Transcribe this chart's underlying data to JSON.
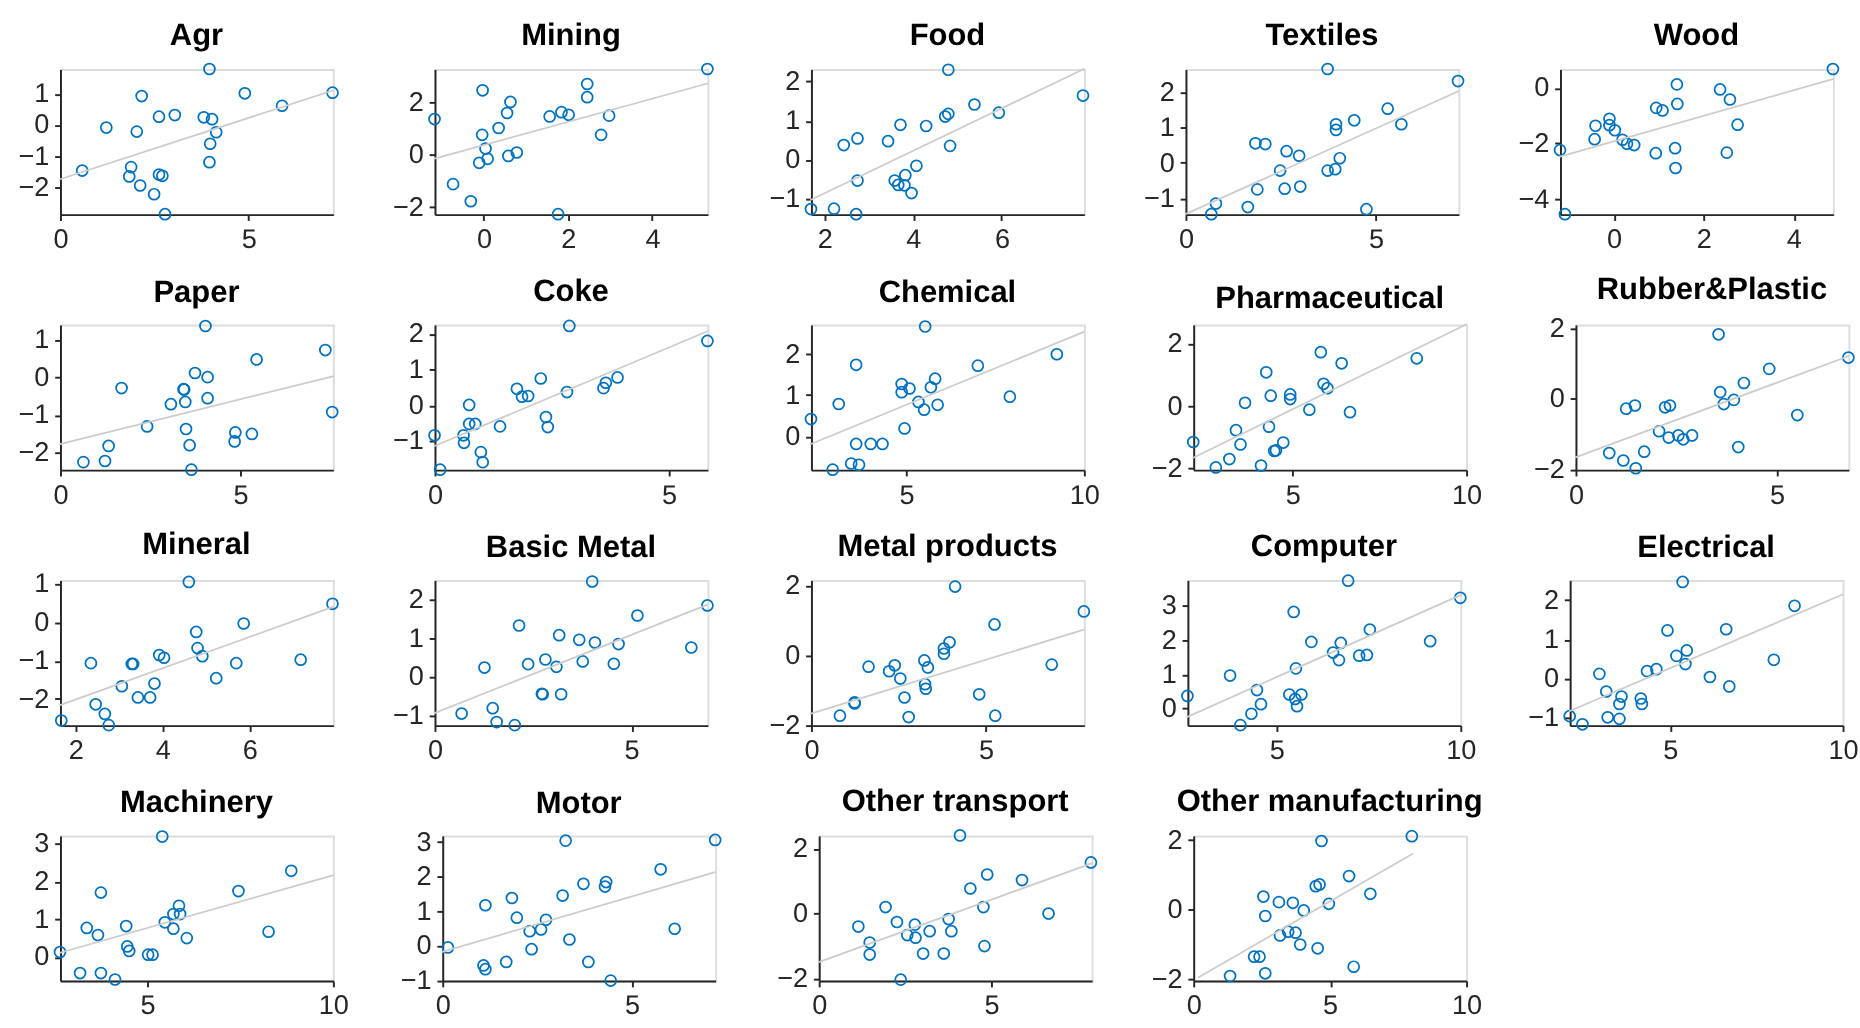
{
  "chart_data": [
    {
      "type": "scatter",
      "title": "Agr",
      "xlim": [
        0,
        7.25
      ],
      "ylim": [
        -2.87,
        1.79
      ],
      "xticks": [
        0,
        5
      ],
      "yticks": [
        -2,
        -1,
        0,
        1
      ],
      "series": [
        {
          "marker": "circle",
          "color": "#0072bd",
          "x": [
            0.59,
            1.23,
            2.04,
            2.17,
            1.89,
            1.84,
            2.13,
            2.5,
            2.63,
            2.63,
            2.72,
            2.79,
            3.05,
            3.82,
            3.97,
            4.04,
            3.99,
            3.97,
            4.15,
            4.91,
            5.9,
            7.24
          ],
          "values": [
            -1.47,
            -0.09,
            -0.22,
            0.92,
            -1.36,
            -1.66,
            -1.95,
            -2.23,
            0.26,
            -1.6,
            -1.64,
            -2.87,
            0.31,
            0.24,
            1.79,
            0.18,
            -0.61,
            -1.2,
            -0.24,
            1.01,
            0.61,
            1.03
          ]
        },
        {
          "type": "line",
          "color": "#cccccc",
          "x": [
            0,
            7.25
          ],
          "values": [
            -1.75,
            1.1
          ]
        }
      ]
    },
    {
      "type": "scatter",
      "title": "Mining",
      "xlim": [
        -1.16,
        5.31
      ],
      "ylim": [
        -2.26,
        3.25
      ],
      "xticks": [
        0,
        2,
        4
      ],
      "yticks": [
        -2,
        0,
        2
      ],
      "series": [
        {
          "marker": "circle",
          "color": "#0072bd",
          "x": [
            -1.16,
            -0.72,
            -0.3,
            -0.02,
            -0.03,
            -0.1,
            0.05,
            0.1,
            0.36,
            0.56,
            0.64,
            0.59,
            0.79,
            1.57,
            1.85,
            2.02,
            1.77,
            2.46,
            2.46,
            2.79,
            2.98,
            5.31
          ],
          "values": [
            1.35,
            -1.12,
            -1.77,
            2.44,
            0.75,
            -0.31,
            0.23,
            -0.16,
            1.01,
            1.58,
            2.0,
            -0.05,
            0.08,
            1.45,
            1.61,
            1.51,
            -2.26,
            2.68,
            2.18,
            0.75,
            1.48,
            3.25
          ]
        },
        {
          "type": "line",
          "color": "#cccccc",
          "x": [
            -1.16,
            5.31
          ],
          "values": [
            -0.15,
            2.7
          ]
        }
      ]
    },
    {
      "type": "scatter",
      "title": "Food",
      "xlim": [
        1.7,
        7.86
      ],
      "ylim": [
        -1.4,
        2.32
      ],
      "xticks": [
        2,
        4,
        6
      ],
      "yticks": [
        -1,
        0,
        1,
        2
      ],
      "series": [
        {
          "marker": "circle",
          "color": "#0072bd",
          "x": [
            1.7,
            2.22,
            2.72,
            2.44,
            2.75,
            2.75,
            3.44,
            3.72,
            3.59,
            3.67,
            3.83,
            3.81,
            3.97,
            4.08,
            4.3,
            4.73,
            4.8,
            4.8,
            4.84,
            5.39,
            5.94,
            7.84
          ],
          "values": [
            -1.27,
            -1.26,
            -1.4,
            0.37,
            0.54,
            -0.54,
            0.47,
            0.89,
            -0.54,
            -0.65,
            -0.4,
            -0.66,
            -0.86,
            -0.16,
            0.86,
            1.1,
            1.17,
            2.3,
            0.35,
            1.41,
            1.2,
            1.64
          ]
        },
        {
          "type": "line",
          "color": "#cccccc",
          "x": [
            1.7,
            7.86
          ],
          "values": [
            -1.03,
            2.32
          ]
        }
      ]
    },
    {
      "type": "scatter",
      "title": "Textiles",
      "xlim": [
        0,
        7.18
      ],
      "ylim": [
        -1.45,
        2.65
      ],
      "xticks": [
        0,
        5
      ],
      "yticks": [
        -1,
        0,
        1,
        2
      ],
      "series": [
        {
          "marker": "circle",
          "color": "#0072bd",
          "x": [
            0.68,
            0.8,
            1.64,
            1.84,
            2.1,
            1.89,
            2.49,
            2.61,
            2.66,
            2.99,
            3.02,
            3.74,
            3.74,
            3.94,
            3.96,
            3.96,
            4.06,
            4.44,
            4.76,
            5.32,
            5.68,
            7.17
          ],
          "values": [
            -1.45,
            -1.15,
            -1.25,
            0.55,
            0.53,
            -0.75,
            -0.22,
            -0.73,
            0.33,
            0.2,
            -0.67,
            2.65,
            -0.22,
            -0.18,
            1.09,
            0.93,
            0.13,
            1.2,
            -1.31,
            1.53,
            1.09,
            2.31
          ]
        },
        {
          "type": "line",
          "color": "#cccccc",
          "x": [
            0,
            7.18
          ],
          "values": [
            -1.45,
            2.02
          ]
        }
      ]
    },
    {
      "type": "scatter",
      "title": "Wood",
      "xlim": [
        -1.19,
        4.88
      ],
      "ylim": [
        -4.53,
        0.66
      ],
      "xticks": [
        0,
        2,
        4
      ],
      "yticks": [
        -4,
        -2,
        0
      ],
      "series": [
        {
          "marker": "circle",
          "color": "#0072bd",
          "x": [
            -1.19,
            -1.08,
            -0.4,
            -0.42,
            -0.09,
            -0.09,
            0.03,
            0.2,
            0.3,
            0.46,
            0.94,
            0.95,
            1.09,
            1.37,
            1.38,
            1.41,
            1.42,
            2.37,
            2.59,
            2.52,
            2.76,
            4.88
          ],
          "values": [
            -2.24,
            -4.53,
            -1.37,
            -1.85,
            -1.12,
            -1.35,
            -1.53,
            -1.87,
            -2.01,
            -2.06,
            -2.35,
            -0.73,
            -0.82,
            -2.17,
            -2.88,
            0.11,
            -0.59,
            -0.07,
            -0.43,
            -2.33,
            -1.33,
            0.66
          ]
        },
        {
          "type": "line",
          "color": "#cccccc",
          "x": [
            -1.19,
            4.88
          ],
          "values": [
            -2.47,
            0.3
          ]
        }
      ]
    },
    {
      "type": "scatter",
      "title": "Paper",
      "xlim": [
        0,
        7.58
      ],
      "ylim": [
        -2.46,
        1.4
      ],
      "xticks": [
        0,
        5
      ],
      "yticks": [
        -2,
        -1,
        0,
        1
      ],
      "series": [
        {
          "marker": "circle",
          "color": "#0072bd",
          "x": [
            0.65,
            1.25,
            1.35,
            1.71,
            2.42,
            3.08,
            3.43,
            3.45,
            3.48,
            3.5,
            3.6,
            3.65,
            3.75,
            4.04,
            4.1,
            4.1,
            4.87,
            4.85,
            5.33,
            5.46,
            7.37,
            7.56
          ],
          "values": [
            -2.26,
            -2.23,
            -1.83,
            -0.29,
            -1.31,
            -0.72,
            -0.32,
            -0.33,
            -0.66,
            -1.38,
            -1.81,
            -2.46,
            0.11,
            1.36,
            0.0,
            -0.56,
            -1.47,
            -1.71,
            -1.51,
            0.47,
            0.72,
            -0.93
          ]
        },
        {
          "type": "line",
          "color": "#cccccc",
          "x": [
            0,
            7.58
          ],
          "values": [
            -1.78,
            0.02
          ]
        }
      ]
    },
    {
      "type": "scatter",
      "title": "Coke",
      "xlim": [
        0,
        5.83
      ],
      "ylim": [
        -1.81,
        2.25
      ],
      "xticks": [
        0,
        5
      ],
      "yticks": [
        -1,
        0,
        1,
        2
      ],
      "series": [
        {
          "marker": "circle",
          "color": "#0072bd",
          "x": [
            0.0,
            0.12,
            0.62,
            0.63,
            0.74,
            0.74,
            0.87,
            0.99,
            1.03,
            1.4,
            1.76,
            1.87,
            2.0,
            2.27,
            2.38,
            2.42,
            2.83,
            2.88,
            3.61,
            3.66,
            3.91,
            5.83
          ],
          "values": [
            -0.85,
            -1.81,
            -0.85,
            -1.06,
            0.0,
            -0.53,
            -0.53,
            -1.32,
            -1.6,
            -0.6,
            0.45,
            0.23,
            0.25,
            0.74,
            -0.34,
            -0.62,
            0.36,
            2.21,
            0.47,
            0.62,
            0.77,
            1.79
          ]
        },
        {
          "type": "line",
          "color": "#cccccc",
          "x": [
            0,
            5.83
          ],
          "values": [
            -1.15,
            2.06
          ]
        }
      ]
    },
    {
      "type": "scatter",
      "title": "Chemical",
      "xlim": [
        2.33,
        10
      ],
      "ylim": [
        -0.83,
        2.73
      ],
      "xticks": [
        5,
        10
      ],
      "yticks": [
        0,
        1,
        2
      ],
      "series": [
        {
          "marker": "circle",
          "color": "#0072bd",
          "x": [
            2.33,
            2.94,
            3.11,
            3.6,
            3.6,
            3.46,
            3.68,
            4.01,
            4.34,
            4.88,
            4.88,
            5.1,
            4.96,
            5.35,
            5.51,
            5.54,
            5.7,
            5.82,
            5.89,
            7.02,
            7.92,
            9.24
          ],
          "values": [
            0.41,
            -0.83,
            0.78,
            1.74,
            -0.2,
            -0.68,
            -0.71,
            -0.2,
            -0.2,
            1.27,
            1.07,
            1.16,
            0.18,
            0.83,
            0.64,
            2.68,
            1.19,
            1.4,
            0.76,
            1.72,
            0.96,
            2.0
          ]
        },
        {
          "type": "line",
          "color": "#cccccc",
          "x": [
            2.33,
            10
          ],
          "values": [
            -0.2,
            2.55
          ]
        }
      ]
    },
    {
      "type": "scatter",
      "title": "Pharmaceutical",
      "xlim": [
        2.15,
        10
      ],
      "ylim": [
        -2.05,
        2.62
      ],
      "xticks": [
        5,
        10
      ],
      "yticks": [
        -2,
        0,
        2
      ],
      "series": [
        {
          "marker": "circle",
          "color": "#0072bd",
          "x": [
            2.15,
            2.8,
            3.19,
            3.38,
            3.51,
            3.64,
            4.1,
            4.25,
            4.33,
            4.38,
            4.48,
            4.53,
            4.74,
            4.94,
            4.94,
            5.49,
            5.82,
            5.9,
            6.01,
            6.42,
            6.66,
            8.58
          ],
          "values": [
            -1.16,
            -1.98,
            -1.71,
            -0.78,
            -1.24,
            0.1,
            -1.92,
            1.08,
            -0.67,
            0.33,
            -1.45,
            -1.43,
            -1.18,
            0.37,
            0.22,
            -0.12,
            1.73,
            0.71,
            0.57,
            1.37,
            -0.2,
            1.53
          ]
        },
        {
          "type": "line",
          "color": "#cccccc",
          "x": [
            2.15,
            10
          ],
          "values": [
            -1.67,
            2.62
          ]
        }
      ]
    },
    {
      "type": "scatter",
      "title": "Rubber&Plastic",
      "xlim": [
        0,
        6.79
      ],
      "ylim": [
        -2.02,
        2.1
      ],
      "xticks": [
        0,
        5
      ],
      "yticks": [
        -2,
        0,
        2
      ],
      "series": [
        {
          "marker": "circle",
          "color": "#0072bd",
          "x": [
            0.84,
            1.19,
            1.26,
            1.48,
            1.5,
            1.71,
            2.08,
            2.23,
            2.35,
            2.32,
            2.56,
            2.68,
            2.9,
            3.56,
            3.6,
            3.69,
            3.94,
            4.19,
            4.05,
            4.82,
            5.52,
            6.79
          ],
          "values": [
            -1.55,
            -1.76,
            -0.29,
            -0.2,
            -1.98,
            -1.51,
            -0.93,
            -0.25,
            -0.2,
            -1.11,
            -1.05,
            -1.16,
            -1.05,
            1.82,
            0.18,
            -0.16,
            -0.04,
            0.44,
            -1.38,
            0.84,
            -0.47,
            1.16
          ]
        },
        {
          "type": "line",
          "color": "#cccccc",
          "x": [
            0,
            6.79
          ],
          "values": [
            -1.67,
            1.2
          ]
        }
      ]
    },
    {
      "type": "scatter",
      "title": "Mineral",
      "xlim": [
        1.65,
        7.92
      ],
      "ylim": [
        -2.68,
        1.09
      ],
      "xticks": [
        2,
        4,
        6
      ],
      "yticks": [
        -2,
        -1,
        0,
        1
      ],
      "series": [
        {
          "marker": "circle",
          "color": "#0072bd",
          "x": [
            1.68,
            2.36,
            2.47,
            2.68,
            2.77,
            3.07,
            3.3,
            3.33,
            3.44,
            3.72,
            3.82,
            3.93,
            4.04,
            4.61,
            4.78,
            4.81,
            4.92,
            5.24,
            5.7,
            5.87,
            7.18,
            7.91
          ],
          "values": [
            -2.56,
            -1.07,
            -2.14,
            -2.39,
            -2.68,
            -1.67,
            -1.09,
            -1.09,
            -1.96,
            -1.96,
            -1.6,
            -0.86,
            -0.93,
            1.04,
            -0.26,
            -0.68,
            -0.89,
            -1.46,
            -1.07,
            -0.04,
            -0.98,
            0.47
          ]
        },
        {
          "type": "line",
          "color": "#cccccc",
          "x": [
            1.65,
            7.92
          ],
          "values": [
            -2.16,
            0.39
          ]
        }
      ]
    },
    {
      "type": "scatter",
      "title": "Basic Metal",
      "xlim": [
        0,
        6.94
      ],
      "ylim": [
        -1.26,
        2.5
      ],
      "xticks": [
        0,
        5
      ],
      "yticks": [
        -1,
        0,
        1,
        2
      ],
      "series": [
        {
          "marker": "circle",
          "color": "#0072bd",
          "x": [
            0.69,
            1.27,
            1.48,
            1.58,
            2.04,
            2.15,
            2.38,
            2.73,
            2.75,
            2.82,
            3.1,
            3.17,
            3.22,
            3.68,
            3.77,
            4.01,
            4.08,
            4.56,
            4.68,
            5.16,
            6.53,
            6.94
          ],
          "values": [
            -0.96,
            0.23,
            -0.82,
            -1.18,
            -1.26,
            1.32,
            0.32,
            -0.45,
            -0.46,
            0.44,
            0.25,
            1.07,
            -0.46,
            0.95,
            0.39,
            2.46,
            0.88,
            0.33,
            0.84,
            1.58,
            0.75,
            1.84
          ]
        },
        {
          "type": "line",
          "color": "#cccccc",
          "x": [
            0,
            6.94
          ],
          "values": [
            -0.95,
            1.86
          ]
        }
      ]
    },
    {
      "type": "scatter",
      "title": "Metal products",
      "xlim": [
        0,
        7.82
      ],
      "ylim": [
        -2.0,
        2.15
      ],
      "xticks": [
        0,
        5
      ],
      "yticks": [
        -2,
        0,
        2
      ],
      "series": [
        {
          "marker": "circle",
          "color": "#0072bd",
          "x": [
            0.83,
            1.25,
            1.25,
            1.65,
            2.24,
            2.4,
            2.56,
            2.68,
            2.8,
            3.25,
            3.27,
            3.29,
            3.35,
            3.81,
            3.81,
            3.97,
            4.13,
            4.82,
            5.26,
            5.28,
            6.9,
            7.82
          ],
          "values": [
            -1.73,
            -1.35,
            -1.38,
            -0.33,
            -0.46,
            -0.29,
            -0.67,
            -1.21,
            -1.77,
            -0.15,
            -0.83,
            -0.96,
            -0.35,
            0.04,
            0.19,
            0.37,
            1.96,
            -1.12,
            0.88,
            -1.73,
            -0.27,
            1.25
          ]
        },
        {
          "type": "line",
          "color": "#cccccc",
          "x": [
            0,
            7.82
          ],
          "values": [
            -1.67,
            0.73
          ]
        }
      ]
    },
    {
      "type": "scatter",
      "title": "Computer",
      "xlim": [
        2.58,
        10
      ],
      "ylim": [
        -0.48,
        3.74
      ],
      "xticks": [
        5,
        10
      ],
      "yticks": [
        0,
        1,
        2,
        3
      ],
      "series": [
        {
          "marker": "circle",
          "color": "#0072bd",
          "x": [
            2.58,
            3.74,
            4.02,
            4.32,
            4.47,
            4.58,
            5.35,
            5.47,
            5.51,
            5.53,
            5.56,
            5.68,
            5.95,
            6.54,
            6.7,
            6.75,
            6.95,
            7.25,
            7.46,
            7.54,
            9.18,
            10.0
          ],
          "values": [
            0.37,
            0.96,
            -0.48,
            -0.15,
            0.54,
            0.13,
            0.41,
            2.81,
            0.28,
            1.17,
            0.07,
            0.41,
            1.94,
            1.63,
            1.41,
            1.91,
            3.72,
            1.54,
            1.56,
            2.3,
            1.96,
            3.22
          ]
        },
        {
          "type": "line",
          "color": "#cccccc",
          "x": [
            2.58,
            10
          ],
          "values": [
            -0.24,
            3.3
          ]
        }
      ]
    },
    {
      "type": "scatter",
      "title": "Electrical",
      "xlim": [
        2.1,
        10
      ],
      "ylim": [
        -1.2,
        2.51
      ],
      "xticks": [
        5,
        10
      ],
      "yticks": [
        -1,
        0,
        1,
        2
      ],
      "series": [
        {
          "marker": "circle",
          "color": "#0072bd",
          "x": [
            2.1,
            2.47,
            2.96,
            3.16,
            3.2,
            3.54,
            3.6,
            3.54,
            4.16,
            4.19,
            4.34,
            4.61,
            4.93,
            5.19,
            5.37,
            5.45,
            5.49,
            6.16,
            6.63,
            6.72,
            8.01,
            8.61
          ],
          "values": [
            -0.97,
            -1.18,
            0.11,
            -0.34,
            -1.0,
            -1.04,
            -0.47,
            -0.66,
            -0.52,
            -0.66,
            0.18,
            0.23,
            1.22,
            0.57,
            2.46,
            0.36,
            0.71,
            0.03,
            1.25,
            -0.21,
            0.47,
            1.85
          ]
        },
        {
          "type": "line",
          "color": "#cccccc",
          "x": [
            2.1,
            10
          ],
          "values": [
            -0.84,
            2.14
          ]
        }
      ]
    },
    {
      "type": "scatter",
      "title": "Machinery",
      "xlim": [
        2.66,
        10
      ],
      "ylim": [
        -0.64,
        3.22
      ],
      "xticks": [
        5,
        10
      ],
      "yticks": [
        0,
        1,
        2,
        3
      ],
      "series": [
        {
          "marker": "circle",
          "color": "#0072bd",
          "x": [
            2.66,
            3.2,
            3.38,
            3.68,
            3.76,
            3.76,
            4.14,
            4.44,
            4.47,
            4.52,
            5.03,
            5.15,
            5.41,
            5.48,
            5.71,
            5.71,
            5.86,
            5.89,
            6.07,
            7.46,
            8.27,
            8.88
          ],
          "values": [
            0.12,
            -0.44,
            0.76,
            0.57,
            1.7,
            -0.44,
            -0.61,
            0.81,
            0.27,
            0.15,
            0.05,
            0.05,
            3.19,
            0.91,
            1.13,
            0.74,
            1.35,
            1.13,
            0.49,
            1.74,
            0.66,
            2.28
          ]
        },
        {
          "type": "line",
          "color": "#cccccc",
          "x": [
            2.66,
            10
          ],
          "values": [
            0.1,
            2.16
          ]
        }
      ]
    },
    {
      "type": "scatter",
      "title": "Motor",
      "xlim": [
        0,
        7.21
      ],
      "ylim": [
        -1.01,
        3.19
      ],
      "xticks": [
        0,
        5
      ],
      "yticks": [
        -1,
        0,
        1,
        2,
        3
      ],
      "series": [
        {
          "marker": "circle",
          "color": "#0072bd",
          "x": [
            0.15,
            1.14,
            1.09,
            1.14,
            1.69,
            1.84,
            1.97,
            2.31,
            2.36,
            2.61,
            2.74,
            3.18,
            3.26,
            3.36,
            3.73,
            3.86,
            4.3,
            4.33,
            4.45,
            5.77,
            6.14,
            7.21
          ],
          "values": [
            -0.05,
            1.17,
            -0.57,
            -0.68,
            -0.47,
            1.38,
            0.81,
            0.42,
            -0.1,
            0.47,
            0.75,
            1.45,
            3.04,
            0.18,
            1.79,
            -0.47,
            1.71,
            1.84,
            -1.01,
            2.21,
            0.49,
            3.06
          ]
        },
        {
          "type": "line",
          "color": "#cccccc",
          "x": [
            0,
            7.21
          ],
          "values": [
            -0.18,
            2.13
          ]
        }
      ]
    },
    {
      "type": "scatter",
      "title": "Other transport",
      "xlim": [
        0,
        7.92
      ],
      "ylim": [
        -2.06,
        2.4
      ],
      "xticks": [
        0,
        5
      ],
      "yticks": [
        -2,
        0,
        2
      ],
      "series": [
        {
          "marker": "circle",
          "color": "#0072bd",
          "x": [
            1.15,
            1.48,
            1.48,
            1.94,
            2.27,
            2.38,
            2.57,
            2.79,
            2.81,
            3.03,
            3.22,
            3.63,
            3.77,
            3.85,
            4.1,
            4.4,
            4.78,
            4.81,
            4.89,
            5.9,
            6.67,
            7.9
          ],
          "values": [
            -0.4,
            -0.89,
            -1.26,
            0.2,
            -0.26,
            -2.03,
            -0.66,
            -0.34,
            -0.74,
            -1.23,
            -0.54,
            -1.23,
            -0.17,
            -0.54,
            2.4,
            0.77,
            0.2,
            -1.0,
            1.2,
            1.03,
            0.0,
            1.57
          ]
        },
        {
          "type": "line",
          "color": "#cccccc",
          "x": [
            0,
            7.92
          ],
          "values": [
            -1.49,
            1.54
          ]
        }
      ]
    },
    {
      "type": "scatter",
      "title": "Other manufacturing",
      "xlim": [
        0,
        10
      ],
      "ylim": [
        -2.05,
        2.13
      ],
      "xticks": [
        0,
        5,
        10
      ],
      "yticks": [
        -2,
        0,
        2
      ],
      "series": [
        {
          "marker": "circle",
          "color": "#0072bd",
          "x": [
            1.35,
            2.23,
            2.43,
            2.57,
            2.64,
            2.64,
            3.14,
            3.18,
            3.48,
            3.65,
            3.75,
            3.92,
            4.05,
            4.49,
            4.63,
            4.56,
            4.7,
            4.97,
            5.71,
            5.88,
            6.49,
            8.01
          ],
          "values": [
            -1.92,
            -1.36,
            -1.36,
            0.37,
            -0.19,
            -1.84,
            0.21,
            -0.75,
            -0.64,
            0.19,
            -0.67,
            -1.01,
            -0.03,
            0.67,
            0.72,
            -1.12,
            1.97,
            0.16,
            0.96,
            -1.65,
            0.45,
            2.11
          ]
        },
        {
          "type": "line",
          "color": "#cccccc",
          "x": [
            0.2,
            8.04
          ],
          "values": [
            -1.95,
            1.6
          ]
        }
      ]
    }
  ]
}
